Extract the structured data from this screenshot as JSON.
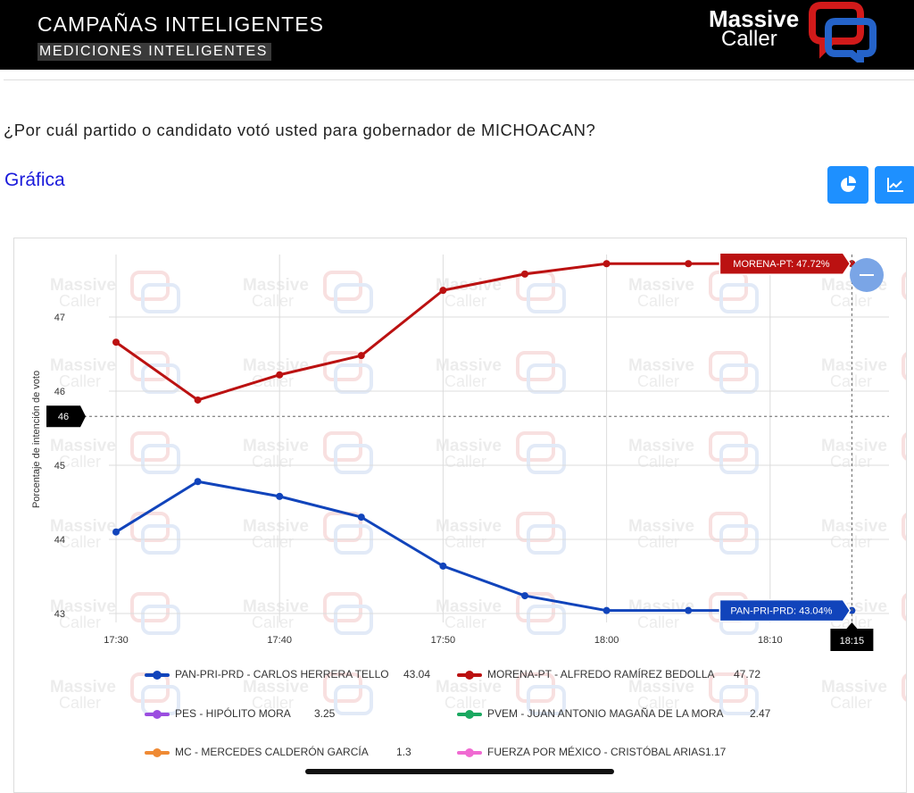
{
  "header": {
    "title": "CAMPAÑAS INTELIGENTES",
    "subtitle": "MEDICIONES INTELIGENTES"
  },
  "logo": {
    "line1": "Massive",
    "line2": "Caller"
  },
  "question": "¿Por cuál partido o candidato votó usted para gobernador de MICHOACAN?",
  "section_title": "Gráfica",
  "buttons": {
    "pie_icon": "pie-chart-icon",
    "line_icon": "line-chart-icon",
    "color": "#1e90ff"
  },
  "watermark": {
    "line1": "Massive",
    "line2": "Caller"
  },
  "chart_data": {
    "type": "line",
    "title": "",
    "xlabel": "",
    "ylabel": "Porcentaje de intención de voto",
    "x": [
      "17:30",
      "17:35",
      "17:40",
      "17:45",
      "17:50",
      "17:55",
      "18:00",
      "18:05",
      "18:10",
      "18:15"
    ],
    "x_ticks": [
      "17:30",
      "17:40",
      "17:50",
      "18:00",
      "18:10"
    ],
    "y_ticks": [
      43,
      44,
      45,
      46,
      47
    ],
    "ylim": [
      42.8,
      47.8
    ],
    "grid": true,
    "series": [
      {
        "name": "PAN-PRI-PRD",
        "color": "#1144bb",
        "values": [
          44.1,
          44.78,
          44.58,
          44.3,
          43.64,
          43.24,
          43.04,
          43.04,
          43.04,
          43.04
        ]
      },
      {
        "name": "MORENA-PT",
        "color": "#bb1111",
        "values": [
          46.66,
          45.88,
          46.22,
          46.48,
          47.36,
          47.58,
          47.72,
          47.72,
          47.72,
          47.72
        ]
      }
    ],
    "crosshair": {
      "x_label": "18:15",
      "y_label": "46",
      "y_value": 45.66
    },
    "tooltips": [
      {
        "series": "MORENA-PT",
        "label": "MORENA-PT: 47.72%"
      },
      {
        "series": "PAN-PRI-PRD",
        "label": "PAN-PRI-PRD: 43.04%"
      }
    ]
  },
  "legend": [
    {
      "name": "PAN-PRI-PRD - CARLOS HERRERA TELLO",
      "value": "43.04",
      "color": "#1144bb"
    },
    {
      "name": "MORENA-PT - ALFREDO RAMÍREZ BEDOLLA",
      "value": "47.72",
      "color": "#bb1111"
    },
    {
      "name": "PES - HIPÓLITO MORA",
      "value": "3.25",
      "color": "#9b4de0"
    },
    {
      "name": "PVEM - JUAN ANTONIO MAGAÑA DE LA MORA",
      "value": "2.47",
      "color": "#1aa860"
    },
    {
      "name": "MC - MERCEDES CALDERÓN GARCÍA",
      "value": "1.3",
      "color": "#ef8a34"
    },
    {
      "name": "FUERZA POR MÉXICO - CRISTÓBAL ARIAS",
      "value": "1.17",
      "color": "#f06ad2"
    }
  ]
}
